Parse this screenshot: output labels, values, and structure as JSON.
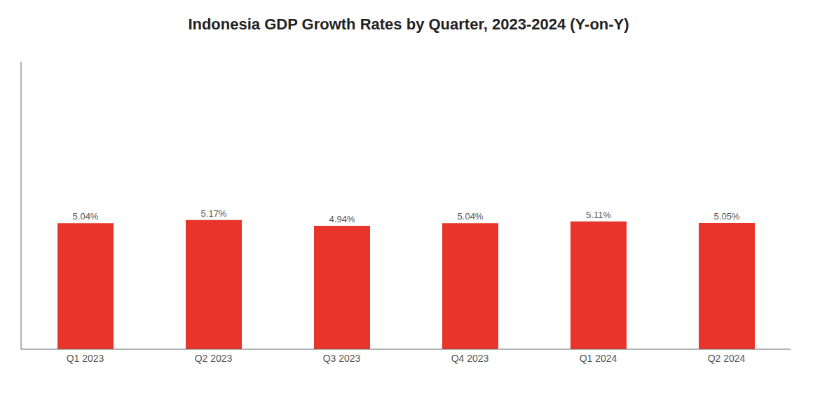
{
  "chart_data": {
    "type": "bar",
    "title": "Indonesia GDP Growth Rates by Quarter, 2023-2024 (Y-on-Y)",
    "categories": [
      "Q1 2023",
      "Q2 2023",
      "Q3 2023",
      "Q4 2023",
      "Q1 2024",
      "Q2 2024"
    ],
    "values": [
      5.04,
      5.17,
      4.94,
      5.04,
      5.11,
      5.05
    ],
    "value_labels": [
      "5.04%",
      "5.17%",
      "4.94%",
      "5.04%",
      "5.11%",
      "5.05%"
    ],
    "data_labels": true,
    "color": "#E8342A",
    "ylim": [
      0,
      11.5
    ],
    "grid": false,
    "tick_labels": "x"
  }
}
